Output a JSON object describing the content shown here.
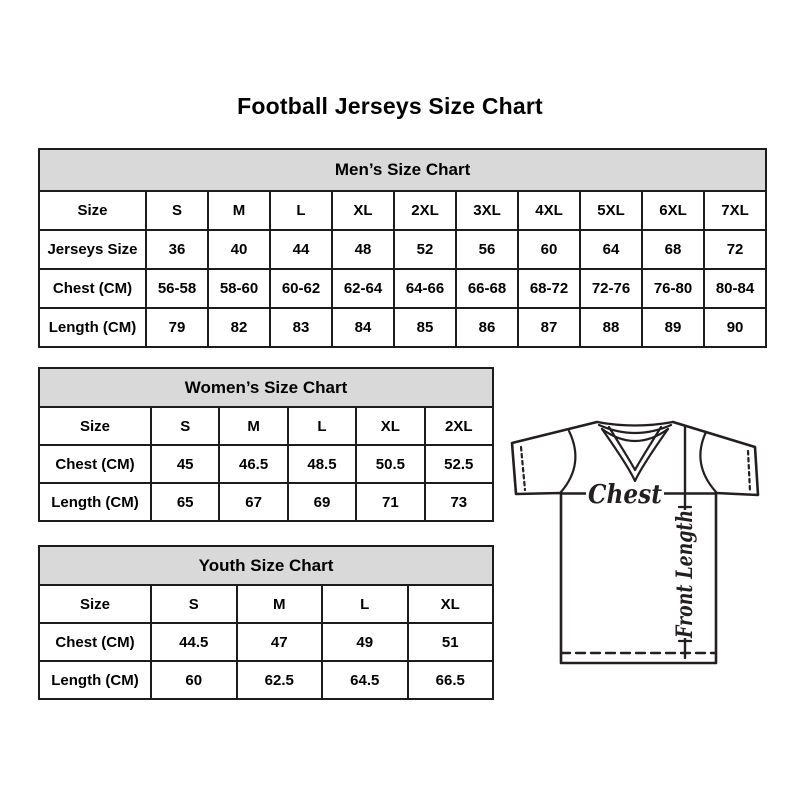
{
  "page_title": "Football Jerseys Size Chart",
  "tables": {
    "men": {
      "title": "Men’s Size Chart",
      "rows": [
        {
          "label": "Size",
          "values": [
            "S",
            "M",
            "L",
            "XL",
            "2XL",
            "3XL",
            "4XL",
            "5XL",
            "6XL",
            "7XL"
          ]
        },
        {
          "label": "Jerseys Size",
          "values": [
            "36",
            "40",
            "44",
            "48",
            "52",
            "56",
            "60",
            "64",
            "68",
            "72"
          ]
        },
        {
          "label": "Chest (CM)",
          "values": [
            "56-58",
            "58-60",
            "60-62",
            "62-64",
            "64-66",
            "66-68",
            "68-72",
            "72-76",
            "76-80",
            "80-84"
          ]
        },
        {
          "label": "Length (CM)",
          "values": [
            "79",
            "82",
            "83",
            "84",
            "85",
            "86",
            "87",
            "88",
            "89",
            "90"
          ]
        }
      ]
    },
    "women": {
      "title": "Women’s Size Chart",
      "rows": [
        {
          "label": "Size",
          "values": [
            "S",
            "M",
            "L",
            "XL",
            "2XL"
          ]
        },
        {
          "label": "Chest (CM)",
          "values": [
            "45",
            "46.5",
            "48.5",
            "50.5",
            "52.5"
          ]
        },
        {
          "label": "Length (CM)",
          "values": [
            "65",
            "67",
            "69",
            "71",
            "73"
          ]
        }
      ]
    },
    "youth": {
      "title": "Youth Size Chart",
      "rows": [
        {
          "label": "Size",
          "values": [
            "S",
            "M",
            "L",
            "XL"
          ]
        },
        {
          "label": "Chest (CM)",
          "values": [
            "44.5",
            "47",
            "49",
            "51"
          ]
        },
        {
          "label": "Length (CM)",
          "values": [
            "60",
            "62.5",
            "64.5",
            "66.5"
          ]
        }
      ]
    }
  },
  "diagram": {
    "chest_label": "Chest",
    "front_length_label": "Front Length"
  },
  "colors": {
    "header_bg": "#d9d9d9",
    "border": "#1c1c1c",
    "text": "#000000",
    "diagram_line": "#231f20"
  }
}
